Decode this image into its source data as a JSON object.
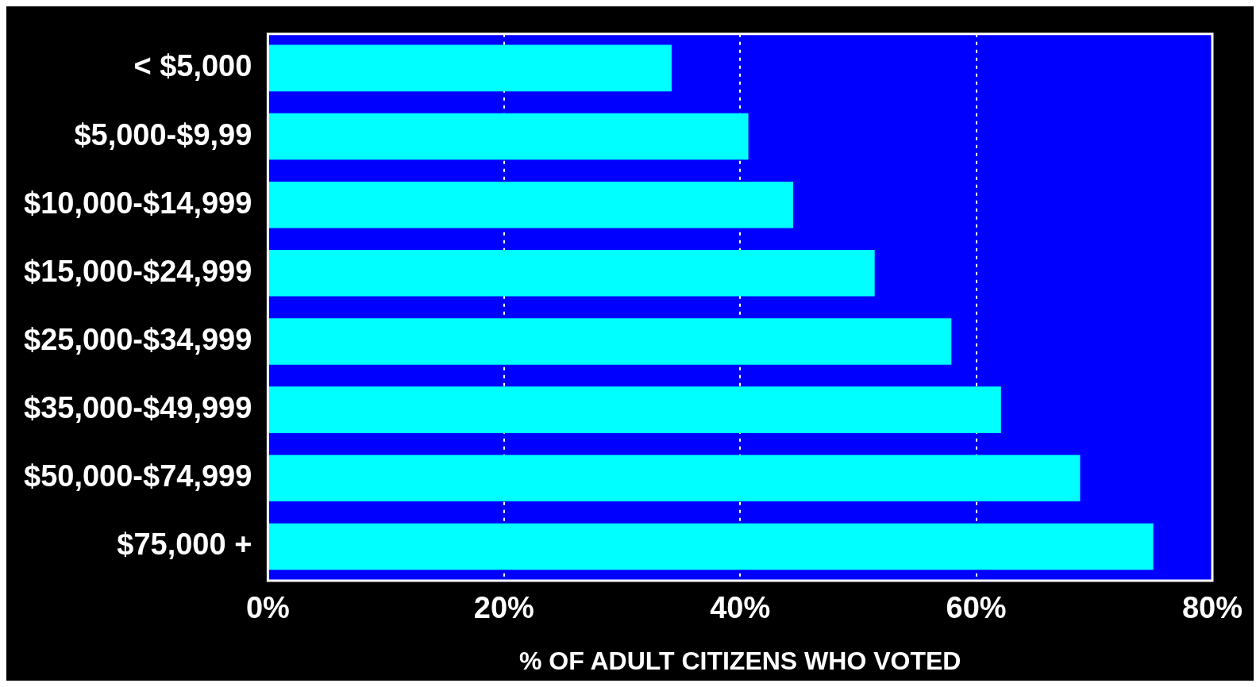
{
  "chart_data": {
    "type": "bar",
    "orientation": "horizontal",
    "xlabel": "% OF ADULT CITIZENS WHO VOTED",
    "categories": [
      "< $5,000",
      "$5,000-$9,99",
      "$10,000-$14,999",
      "$15,000-$24,999",
      "$25,000-$34,999",
      "$35,000-$49,999",
      "$50,000-$74,999",
      "$75,000 +"
    ],
    "values": [
      34.2,
      40.7,
      44.5,
      51.4,
      57.9,
      62.1,
      68.8,
      75.0
    ],
    "color": "#00ffff",
    "xlim": [
      0,
      80
    ],
    "xticks": [
      {
        "value": 0,
        "label": "0%"
      },
      {
        "value": 20,
        "label": "20%"
      },
      {
        "value": 40,
        "label": "40%"
      },
      {
        "value": 60,
        "label": "60%"
      },
      {
        "value": 80,
        "label": "80%"
      }
    ],
    "grid": "x",
    "legend": false
  }
}
